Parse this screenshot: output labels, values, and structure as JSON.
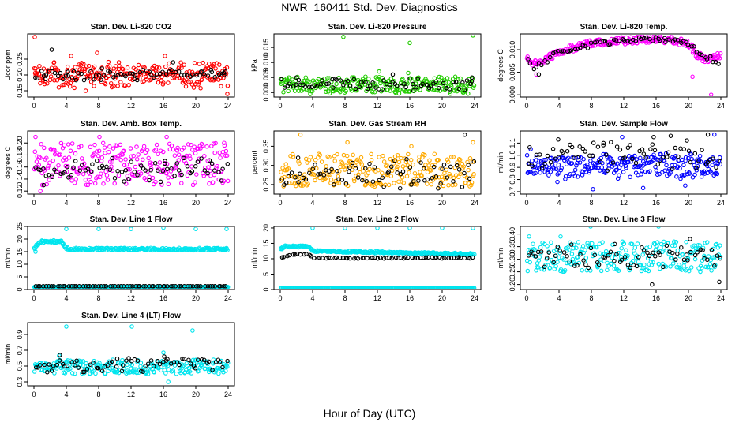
{
  "figure": {
    "title": "NWR_160411  Std. Dev. Diagnostics",
    "xlabel": "Hour of Day (UTC)"
  },
  "chart_data": [
    {
      "type": "scatter",
      "title": "Stan. Dev. Li-820 CO2",
      "xlabel": "",
      "ylabel": "Licor ppm",
      "xlim": [
        0,
        24
      ],
      "ylim": [
        0.13,
        0.33
      ],
      "xticks": [
        0,
        4,
        8,
        12,
        16,
        20,
        24
      ],
      "yticks": [
        0.15,
        0.2,
        0.25
      ],
      "ytick_labels": [
        "0.15",
        "0.20",
        "0.25"
      ],
      "grid": false,
      "series": [
        {
          "color": "#ff0000",
          "band": [
            0.18,
            0.22
          ],
          "scatter": 0.025,
          "points": [
            [
              0.1,
              0.32
            ],
            [
              0.2,
              0.22
            ],
            [
              4.6,
              0.26
            ],
            [
              7.8,
              0.27
            ],
            [
              16.2,
              0.26
            ],
            [
              23.9,
              0.14
            ],
            [
              2.5,
              0.24
            ],
            [
              10.5,
              0.24
            ],
            [
              6.4,
              0.15
            ],
            [
              20.3,
              0.17
            ]
          ]
        },
        {
          "color": "#000000",
          "band": [
            0.19,
            0.21
          ],
          "scatter": 0.012,
          "points": [
            [
              2.2,
              0.28
            ],
            [
              1.5,
              0.2
            ],
            [
              4.2,
              0.21
            ],
            [
              8.4,
              0.22
            ],
            [
              12.5,
              0.2
            ],
            [
              17.2,
              0.24
            ],
            [
              20.8,
              0.21
            ],
            [
              23.5,
              0.2
            ]
          ]
        }
      ]
    },
    {
      "type": "scatter",
      "title": "Stan. Dev. Li-820 Pressure",
      "xlabel": "",
      "ylabel": "kPa",
      "xlim": [
        0,
        24
      ],
      "ylim": [
        -0.0015,
        0.0195
      ],
      "xticks": [
        0,
        4,
        8,
        12,
        16,
        20,
        24
      ],
      "yticks": [
        0,
        0.005,
        0.01,
        0.015
      ],
      "ytick_labels": [
        "0.000",
        "0.005",
        "0.010",
        "0.015"
      ],
      "grid": false,
      "series": [
        {
          "color": "#22cc00",
          "band": [
            0.0,
            0.005
          ],
          "scatter": 0.0006,
          "points": [
            [
              7.8,
              0.0185
            ],
            [
              16.0,
              0.0165
            ],
            [
              23.8,
              0.019
            ],
            [
              12.2,
              0.007
            ],
            [
              15.8,
              0.0065
            ]
          ]
        },
        {
          "color": "#000000",
          "band": [
            0.001,
            0.004
          ],
          "scatter": 0.0008,
          "points": [
            [
              2.0,
              0.005
            ],
            [
              6.8,
              0.0045
            ],
            [
              13.9,
              0.006
            ],
            [
              17.0,
              0.0045
            ],
            [
              23.7,
              0.005
            ]
          ]
        }
      ]
    },
    {
      "type": "scatter",
      "title": "Stan. Dev. Li-820 Temp.",
      "xlabel": "",
      "ylabel": "degrees C",
      "xlim": [
        0,
        24
      ],
      "ylim": [
        -0.0005,
        0.0135
      ],
      "xticks": [
        0,
        4,
        8,
        12,
        16,
        20,
        24
      ],
      "yticks": [
        0,
        0.005,
        0.01
      ],
      "ytick_labels": [
        "0.000",
        "0.005",
        "0.010"
      ],
      "grid": false,
      "series": [
        {
          "color": "#ff00ff",
          "curve": [
            [
              0,
              0.008
            ],
            [
              1,
              0.007
            ],
            [
              2,
              0.0075
            ],
            [
              4,
              0.0095
            ],
            [
              8,
              0.0115
            ],
            [
              12,
              0.012
            ],
            [
              16,
              0.0125
            ],
            [
              20,
              0.0115
            ],
            [
              21,
              0.009
            ],
            [
              22,
              0.008
            ],
            [
              24,
              0.0085
            ]
          ],
          "scatter": 0.0008,
          "points": [
            [
              22.8,
              0.0
            ],
            [
              1.2,
              0.0045
            ],
            [
              20.5,
              0.004
            ]
          ]
        },
        {
          "color": "#000000",
          "curve": [
            [
              0,
              0.008
            ],
            [
              1,
              0.006
            ],
            [
              2,
              0.007
            ],
            [
              4,
              0.0095
            ],
            [
              8,
              0.011
            ],
            [
              12,
              0.012
            ],
            [
              16,
              0.0125
            ],
            [
              20,
              0.0115
            ],
            [
              22,
              0.0085
            ],
            [
              24,
              0.007
            ]
          ],
          "scatter": 0.0006,
          "points": [
            [
              1.5,
              0.0045
            ]
          ]
        }
      ]
    },
    {
      "type": "scatter",
      "title": "Stan. Dev. Amb. Box Temp.",
      "xlabel": "",
      "ylabel": "degrees C",
      "xlim": [
        0,
        24
      ],
      "ylim": [
        0.115,
        0.22
      ],
      "xticks": [
        0,
        4,
        8,
        12,
        16,
        20,
        24
      ],
      "yticks": [
        0.12,
        0.14,
        0.16,
        0.18,
        0.2
      ],
      "ytick_labels": [
        "0.12",
        "0.14",
        "0.16",
        "0.18",
        "0.20"
      ],
      "grid": false,
      "series": [
        {
          "color": "#ff00ff",
          "band": [
            0.13,
            0.2
          ],
          "scatter": 0.0,
          "points": [
            [
              0.2,
              0.21
            ],
            [
              8.1,
              0.21
            ],
            [
              16.4,
              0.21
            ],
            [
              0.8,
              0.12
            ],
            [
              23.5,
              0.2
            ]
          ]
        },
        {
          "color": "#000000",
          "band": [
            0.14,
            0.17
          ],
          "scatter": 0.008,
          "points": [
            [
              1.2,
              0.13
            ],
            [
              16.2,
              0.17
            ],
            [
              4.1,
              0.16
            ]
          ]
        }
      ]
    },
    {
      "type": "scatter",
      "title": "Stan. Dev. Gas Stream RH",
      "xlabel": "",
      "ylabel": "percent",
      "xlim": [
        0,
        24
      ],
      "ylim": [
        0.225,
        0.39
      ],
      "xticks": [
        0,
        4,
        8,
        12,
        16,
        20,
        24
      ],
      "yticks": [
        0.25,
        0.3,
        0.35
      ],
      "ytick_labels": [
        "0.25",
        "0.30",
        "0.35"
      ],
      "grid": false,
      "series": [
        {
          "color": "#ffaa00",
          "band": [
            0.245,
            0.33
          ],
          "scatter": 0.0,
          "points": [
            [
              2.5,
              0.38
            ],
            [
              23.8,
              0.36
            ],
            [
              16.2,
              0.35
            ],
            [
              8.3,
              0.36
            ]
          ]
        },
        {
          "color": "#000000",
          "band": [
            0.25,
            0.31
          ],
          "scatter": 0.01,
          "points": [
            [
              22.8,
              0.38
            ],
            [
              14.8,
              0.24
            ],
            [
              2.2,
              0.32
            ],
            [
              19.5,
              0.24
            ]
          ]
        }
      ]
    },
    {
      "type": "scatter",
      "title": "Stan. Dev. Sample Flow",
      "xlabel": "",
      "ylabel": "ml/min",
      "xlim": [
        0,
        24
      ],
      "ylim": [
        0.68,
        1.2
      ],
      "xticks": [
        0,
        4,
        8,
        12,
        16,
        20,
        24
      ],
      "yticks": [
        0.7,
        0.8,
        0.9,
        1.0,
        1.1
      ],
      "ytick_labels": [
        "0.7",
        "0.8",
        "0.9",
        "1.0",
        "1.1"
      ],
      "grid": false,
      "series": [
        {
          "color": "#0000ff",
          "band": [
            0.82,
            1.0
          ],
          "scatter": 0.02,
          "points": [
            [
              23.2,
              1.17
            ],
            [
              11.8,
              1.15
            ],
            [
              19.6,
              0.75
            ],
            [
              3.8,
              0.78
            ],
            [
              8.2,
              0.72
            ],
            [
              14.4,
              0.73
            ],
            [
              0.5,
              1.05
            ]
          ]
        },
        {
          "color": "#000000",
          "band": [
            0.9,
            1.1
          ],
          "scatter": 0.04,
          "points": [
            [
              3.9,
              1.13
            ],
            [
              15.7,
              1.15
            ],
            [
              17.8,
              1.16
            ],
            [
              9.5,
              1.1
            ],
            [
              22.4,
              1.17
            ]
          ]
        }
      ]
    },
    {
      "type": "scatter",
      "title": "Stan. Dev. Line 1 Flow",
      "xlabel": "",
      "ylabel": "ml/min",
      "xlim": [
        0,
        24
      ],
      "ylim": [
        0,
        25
      ],
      "xticks": [
        0,
        4,
        8,
        12,
        16,
        20,
        24
      ],
      "yticks": [
        0,
        5,
        10,
        15,
        20,
        25
      ],
      "ytick_labels": [
        "0",
        "5",
        "10",
        "15",
        "20",
        "25"
      ],
      "grid": false,
      "series": [
        {
          "color": "#00e5ee",
          "curve": [
            [
              0,
              16
            ],
            [
              0.5,
              18
            ],
            [
              1,
              19
            ],
            [
              3.4,
              19
            ],
            [
              3.8,
              17
            ],
            [
              4.3,
              16
            ],
            [
              24,
              16
            ]
          ],
          "scatter": 0.5,
          "points": [
            [
              4.0,
              24
            ],
            [
              8.0,
              24
            ],
            [
              12.0,
              24
            ],
            [
              16.0,
              24.5
            ],
            [
              20.0,
              24
            ],
            [
              23.8,
              24
            ],
            [
              0.2,
              15
            ]
          ]
        },
        {
          "color": "#00e5ee",
          "curve": [
            [
              0,
              1
            ],
            [
              24,
              1
            ]
          ],
          "scatter": 0.0,
          "points": []
        },
        {
          "color": "#000000",
          "curve": [
            [
              0,
              1.3
            ],
            [
              24,
              1.3
            ]
          ],
          "scatter": 0.0,
          "points": []
        }
      ]
    },
    {
      "type": "scatter",
      "title": "Stan. Dev. Line 2 Flow",
      "xlabel": "",
      "ylabel": "ml/min",
      "xlim": [
        0,
        24
      ],
      "ylim": [
        0,
        20.5
      ],
      "xticks": [
        0,
        4,
        8,
        12,
        16,
        20,
        24
      ],
      "yticks": [
        0,
        5,
        10,
        15,
        20
      ],
      "ytick_labels": [
        "0",
        "5",
        "10",
        "15",
        "20"
      ],
      "grid": false,
      "series": [
        {
          "color": "#00e5ee",
          "curve": [
            [
              0,
              13
            ],
            [
              0.5,
              14
            ],
            [
              3.6,
              14
            ],
            [
              4,
              12.5
            ],
            [
              24,
              11.5
            ]
          ],
          "scatter": 0.3,
          "points": [
            [
              4.0,
              20
            ],
            [
              8.0,
              20
            ],
            [
              12.0,
              20
            ],
            [
              16.0,
              20
            ],
            [
              20.0,
              20
            ],
            [
              23.8,
              20
            ]
          ]
        },
        {
          "color": "#00e5ee",
          "curve": [
            [
              0,
              0.5
            ],
            [
              24,
              0.5
            ]
          ],
          "scatter": 0.0,
          "points": []
        },
        {
          "color": "#000000",
          "curve": [
            [
              0,
              10
            ],
            [
              1,
              11
            ],
            [
              2,
              11.5
            ],
            [
              3.6,
              11.5
            ],
            [
              4,
              10.2
            ],
            [
              24,
              10.3
            ]
          ],
          "scatter": 0.2,
          "points": []
        }
      ]
    },
    {
      "type": "scatter",
      "title": "Stan. Dev. Line 3 Flow",
      "xlabel": "",
      "ylabel": "ml/min",
      "xlim": [
        0,
        24
      ],
      "ylim": [
        0.18,
        0.43
      ],
      "xticks": [
        0,
        4,
        8,
        12,
        16,
        20,
        24
      ],
      "yticks": [
        0.2,
        0.25,
        0.3,
        0.35,
        0.4
      ],
      "ytick_labels": [
        "0.20",
        "0.25",
        "0.30",
        "0.35",
        "0.40"
      ],
      "grid": false,
      "series": [
        {
          "color": "#00e5ee",
          "band": [
            0.25,
            0.37
          ],
          "scatter": 0.0,
          "points": [
            [
              0.3,
              0.39
            ],
            [
              7.9,
              0.43
            ],
            [
              16.3,
              0.43
            ],
            [
              4.2,
              0.39
            ]
          ]
        },
        {
          "color": "#000000",
          "band": [
            0.26,
            0.36
          ],
          "scatter": 0.0,
          "points": [
            [
              15.5,
              0.2
            ],
            [
              23.8,
              0.21
            ],
            [
              20.2,
              0.38
            ],
            [
              10.9,
              0.36
            ]
          ]
        }
      ]
    },
    {
      "type": "scatter",
      "title": "Stan. Dev. Line 4 (LT) Flow",
      "xlabel": "",
      "ylabel": "ml/min",
      "xlim": [
        0,
        24
      ],
      "ylim": [
        0.25,
        1.05
      ],
      "xticks": [
        0,
        4,
        8,
        12,
        16,
        20,
        24
      ],
      "yticks": [
        0.3,
        0.5,
        0.7,
        0.9
      ],
      "ytick_labels": [
        "0.3",
        "0.5",
        "0.7",
        "0.9"
      ],
      "grid": false,
      "series": [
        {
          "color": "#00e5ee",
          "band": [
            0.4,
            0.58
          ],
          "scatter": 0.0,
          "points": [
            [
              4.0,
              1.0
            ],
            [
              12.1,
              1.0
            ],
            [
              19.6,
              0.95
            ],
            [
              16.0,
              0.67
            ],
            [
              3.1,
              0.63
            ],
            [
              16.6,
              0.3
            ]
          ]
        },
        {
          "color": "#000000",
          "band": [
            0.42,
            0.6
          ],
          "scatter": 0.0,
          "points": [
            [
              3.2,
              0.64
            ],
            [
              16.1,
              0.62
            ]
          ]
        }
      ]
    }
  ]
}
